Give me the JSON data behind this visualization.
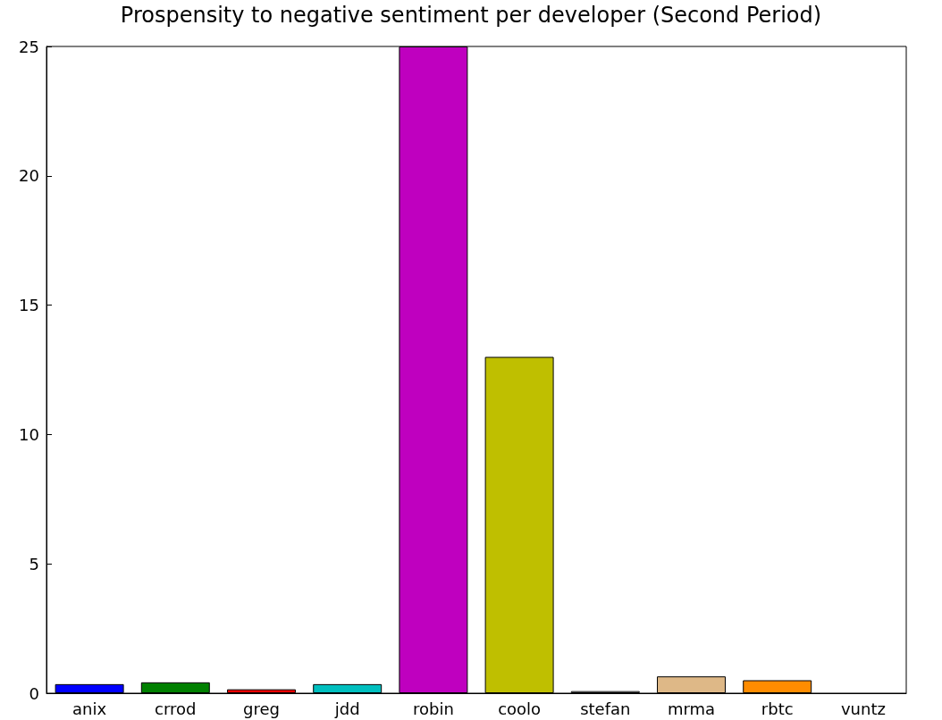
{
  "chart_data": {
    "type": "bar",
    "title": "Prospensity to negative sentiment per developer (Second Period)",
    "categories": [
      "anix",
      "crrod",
      "greg",
      "jdd",
      "robin",
      "coolo",
      "stefan",
      "mrma",
      "rbtc",
      "vuntz"
    ],
    "values": [
      0.35,
      0.42,
      0.15,
      0.35,
      25,
      13,
      0.08,
      0.65,
      0.5,
      null
    ],
    "colors": [
      "#0000ff",
      "#008000",
      "#ff0000",
      "#00bfbf",
      "#bf00bf",
      "#bfbf00",
      "#f5f5f5",
      "#deb887",
      "#ff8c00",
      null
    ],
    "ylim": [
      0,
      25
    ],
    "yticks": [
      0,
      5,
      10,
      15,
      20,
      25
    ],
    "grid": false
  }
}
